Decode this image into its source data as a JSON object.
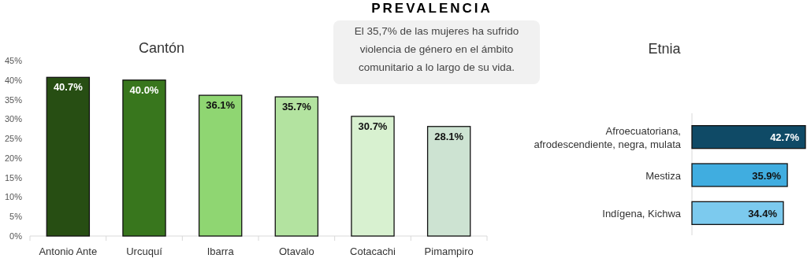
{
  "chart_data": [
    {
      "type": "other",
      "title": "PREVALENCIA",
      "annotations": [
        "El 35,7% de las mujeres ha sufrido violencia de género en el ámbito comunitario a lo largo de su vida."
      ]
    },
    {
      "type": "bar",
      "title": "Cantón",
      "categories": [
        "Antonio Ante",
        "Urcuquí",
        "Ibarra",
        "Otavalo",
        "Cotacachi",
        "Pimampiro"
      ],
      "values": [
        40.7,
        40.0,
        36.1,
        35.7,
        30.7,
        28.1
      ],
      "value_labels": [
        "40.7%",
        "40.0%",
        "36.1%",
        "35.7%",
        "30.7%",
        "28.1%"
      ],
      "colors": [
        "#274e13",
        "#38761d",
        "#8fd672",
        "#b3e3a0",
        "#d8f1d0",
        "#cde3d2"
      ],
      "ylim": [
        0,
        45
      ],
      "yticks": [
        {
          "value": 0,
          "label": "0%"
        },
        {
          "value": 5,
          "label": "5%"
        },
        {
          "value": 10,
          "label": "10%"
        },
        {
          "value": 15,
          "label": "15%"
        },
        {
          "value": 20,
          "label": "20%"
        },
        {
          "value": 25,
          "label": "25%"
        },
        {
          "value": 30,
          "label": "30%"
        },
        {
          "value": 35,
          "label": "35%"
        },
        {
          "value": 40,
          "label": "40%"
        },
        {
          "value": 45,
          "label": "45%"
        }
      ]
    },
    {
      "type": "bar",
      "title": "Etnia",
      "orientation": "horizontal",
      "categories": [
        "Afroecuatoriana, afrodescendiente, negra, mulata",
        "Mestiza",
        "Indígena, Kichwa"
      ],
      "values": [
        42.7,
        35.9,
        34.4
      ],
      "value_labels": [
        "42.7%",
        "35.9%",
        "34.4%"
      ],
      "colors": [
        "#0f4a66",
        "#40ade0",
        "#7ccaee"
      ]
    }
  ]
}
